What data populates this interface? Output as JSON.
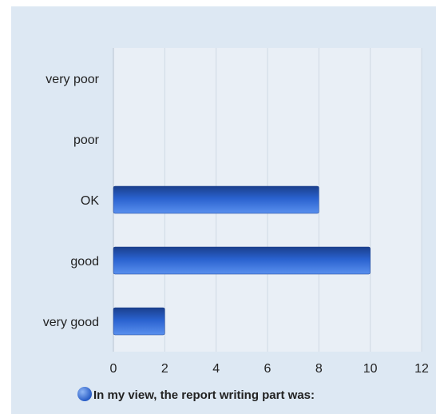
{
  "chart_data": {
    "type": "bar",
    "orientation": "horizontal",
    "categories": [
      "very poor",
      "poor",
      "OK",
      "good",
      "very good"
    ],
    "series": [
      {
        "name": "In my view, the report writing part was:",
        "values": [
          0,
          0,
          8,
          10,
          2
        ]
      }
    ],
    "xlim": [
      0,
      12
    ],
    "xticks": [
      0,
      2,
      4,
      6,
      8,
      10,
      12
    ],
    "grid": true,
    "legend_position": "bottom",
    "colors": {
      "bar": "#2a62cf",
      "bar_light": "#5a90ee",
      "bar_dark": "#1a3f8c",
      "background": "#dde8f3",
      "grid": "#c9d4e0"
    }
  }
}
